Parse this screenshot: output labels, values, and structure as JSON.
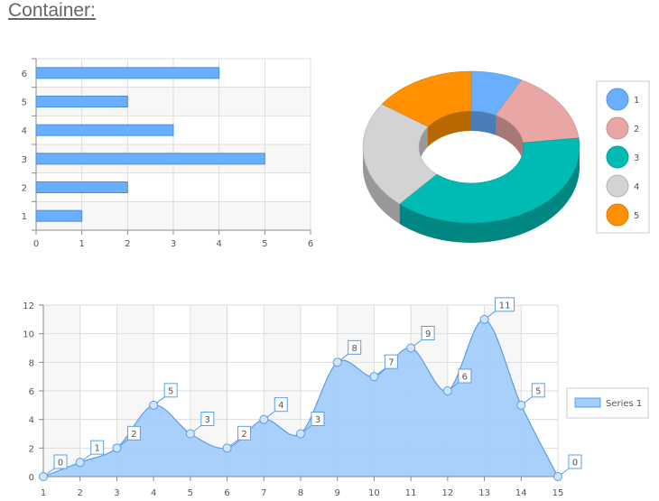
{
  "page": {
    "title": "Container:"
  },
  "chart_data": [
    {
      "type": "bar",
      "orientation": "horizontal",
      "categories": [
        "1",
        "2",
        "3",
        "4",
        "5",
        "6"
      ],
      "values": [
        1,
        2,
        5,
        3,
        2,
        4
      ],
      "xlim": [
        0,
        6
      ],
      "x_ticks": [
        "0",
        "1",
        "2",
        "3",
        "4",
        "5",
        "6"
      ],
      "grid": true,
      "color": "#6aaeff"
    },
    {
      "type": "pie",
      "style": "3d-donut",
      "categories": [
        "1",
        "2",
        "3",
        "4",
        "5"
      ],
      "values": [
        1,
        2,
        5,
        3,
        2
      ],
      "colors": [
        "#6aaeff",
        "#e8a7a5",
        "#00bbb4",
        "#d3d3d3",
        "#ff9100"
      ],
      "legend": "right"
    },
    {
      "type": "area",
      "smooth": true,
      "x": [
        1,
        2,
        3,
        4,
        5,
        6,
        7,
        8,
        9,
        10,
        11,
        12,
        13,
        14,
        15
      ],
      "series": [
        {
          "name": "Series 1",
          "values": [
            0,
            1,
            2,
            5,
            3,
            2,
            4,
            3,
            8,
            7,
            9,
            6,
            11,
            5,
            0
          ]
        }
      ],
      "ylim": [
        0,
        12
      ],
      "y_ticks": [
        "0",
        "2",
        "4",
        "6",
        "8",
        "10",
        "12"
      ],
      "x_ticks": [
        "1",
        "2",
        "3",
        "4",
        "5",
        "6",
        "7",
        "8",
        "9",
        "10",
        "11",
        "12",
        "13",
        "14",
        "15"
      ],
      "data_labels": true,
      "grid": true,
      "legend": "right",
      "color": "#a3cdfb"
    }
  ]
}
